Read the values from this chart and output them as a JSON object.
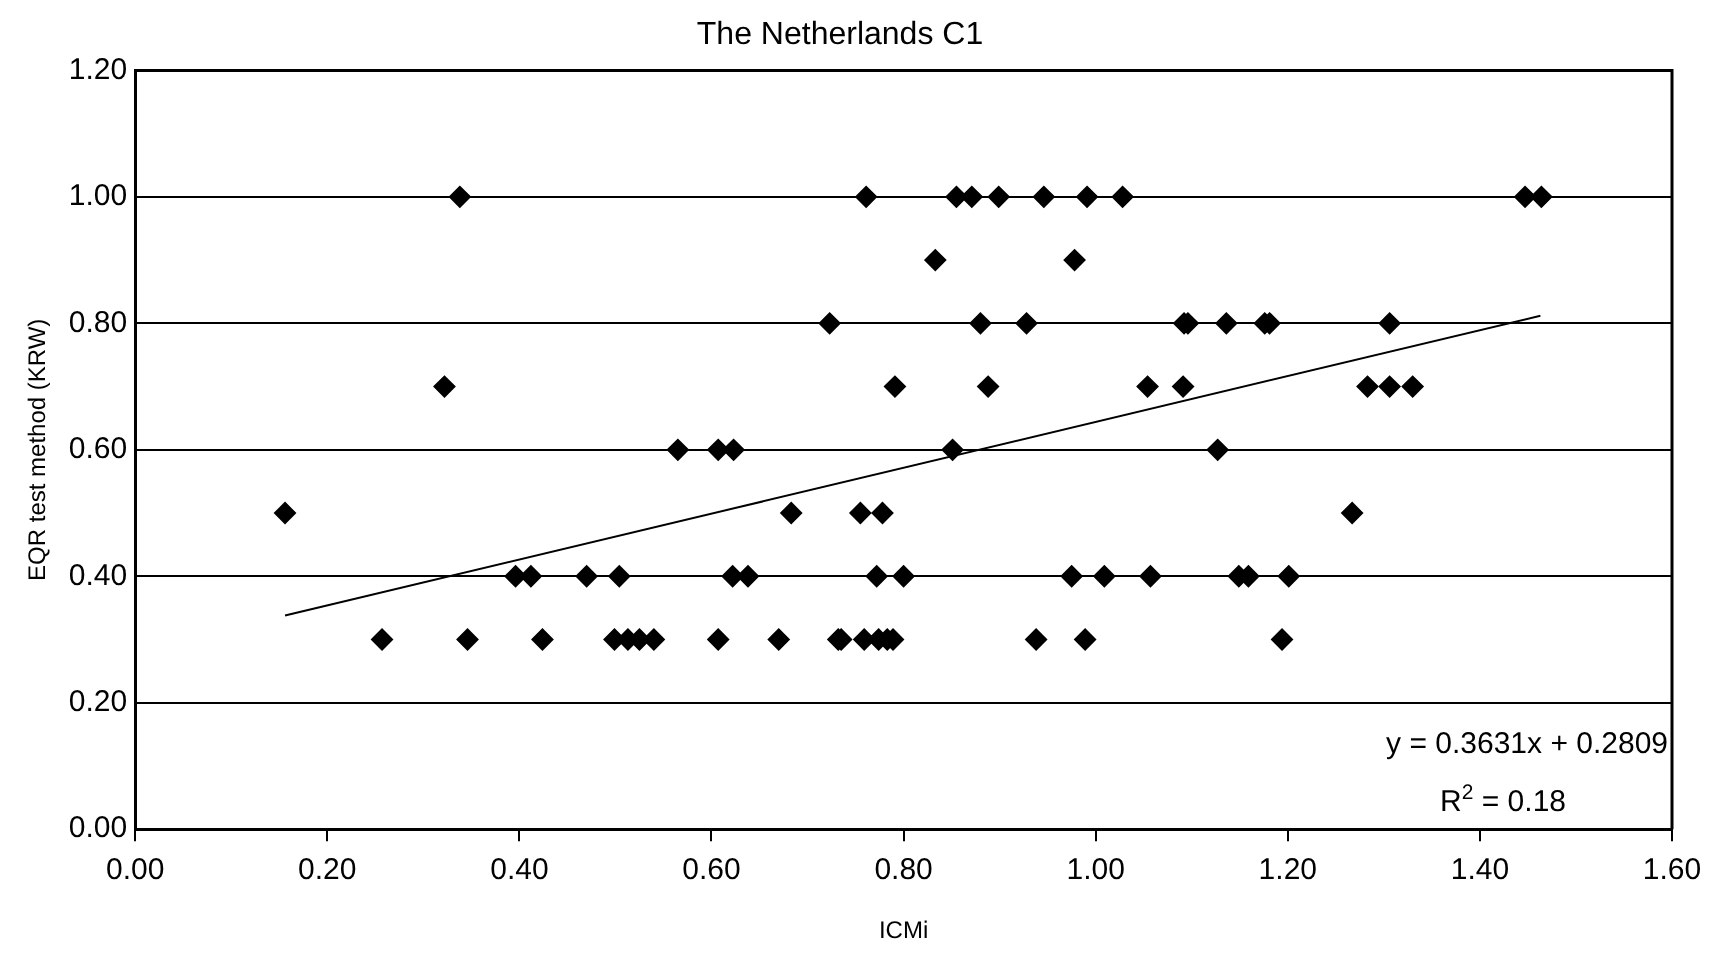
{
  "chart_data": {
    "type": "scatter",
    "title": "The Netherlands C1",
    "xlabel": "ICMi",
    "ylabel": "EQR test method (KRW)",
    "xlim": [
      0,
      1.6
    ],
    "xticks": [
      {
        "value": 0,
        "label": "0.00"
      },
      {
        "value": 0.2,
        "label": "0.20"
      },
      {
        "value": 0.4,
        "label": "0.40"
      },
      {
        "value": 0.6,
        "label": "0.60"
      },
      {
        "value": 0.8,
        "label": "0.80"
      },
      {
        "value": 1,
        "label": "1.00"
      },
      {
        "value": 1.2,
        "label": "1.20"
      },
      {
        "value": 1.4,
        "label": "1.40"
      },
      {
        "value": 1.6,
        "label": "1.60"
      }
    ],
    "ylim": [
      0,
      1.2
    ],
    "yticks": [
      {
        "value": 0,
        "label": "0.00"
      },
      {
        "value": 0.2,
        "label": "0.20"
      },
      {
        "value": 0.4,
        "label": "0.40"
      },
      {
        "value": 0.6,
        "label": "0.60"
      },
      {
        "value": 0.8,
        "label": "0.80"
      },
      {
        "value": 1,
        "label": "1.00"
      },
      {
        "value": 1.2,
        "label": "1.20"
      }
    ],
    "grid": "y",
    "legend": false,
    "marker": "diamond",
    "series": [
      {
        "type": "scatter",
        "color": "#000000",
        "x": [
          0.338,
          0.761,
          0.855,
          0.871,
          0.899,
          0.946,
          0.991,
          1.028,
          1.447,
          1.464,
          0.833,
          0.978,
          0.723,
          0.88,
          0.928,
          1.092,
          1.096,
          1.136,
          1.176,
          1.181,
          1.306,
          0.322,
          0.791,
          0.888,
          1.054,
          1.091,
          1.283,
          1.306,
          1.33,
          0.565,
          0.607,
          0.623,
          0.851,
          1.127,
          0.156,
          0.683,
          0.755,
          0.778,
          1.267,
          0.396,
          0.412,
          0.47,
          0.504,
          0.622,
          0.638,
          0.772,
          0.8,
          0.975,
          1.009,
          1.057,
          1.149,
          1.159,
          1.201,
          0.257,
          0.346,
          0.424,
          0.499,
          0.513,
          0.525,
          0.54,
          0.607,
          0.67,
          0.732,
          0.735,
          0.759,
          0.774,
          0.783,
          0.789,
          0.938,
          0.989,
          1.194
        ],
        "values": [
          1,
          1,
          1,
          1,
          1,
          1,
          1,
          1,
          1,
          1,
          0.9,
          0.9,
          0.8,
          0.8,
          0.8,
          0.8,
          0.8,
          0.8,
          0.8,
          0.8,
          0.8,
          0.7,
          0.7,
          0.7,
          0.7,
          0.7,
          0.7,
          0.7,
          0.7,
          0.6,
          0.6,
          0.6,
          0.6,
          0.6,
          0.5,
          0.5,
          0.5,
          0.5,
          0.5,
          0.4,
          0.4,
          0.4,
          0.4,
          0.4,
          0.4,
          0.4,
          0.4,
          0.4,
          0.4,
          0.4,
          0.4,
          0.4,
          0.4,
          0.3,
          0.3,
          0.3,
          0.3,
          0.3,
          0.3,
          0.3,
          0.3,
          0.3,
          0.3,
          0.3,
          0.3,
          0.3,
          0.3,
          0.3,
          0.3,
          0.3,
          0.3
        ]
      },
      {
        "type": "line",
        "color": "#000000",
        "marker": "none",
        "x": [
          0.156,
          1.463
        ],
        "values": [
          0.338,
          0.812
        ]
      }
    ],
    "annotations": [
      "y = 0.3631x + 0.2809",
      "R$^{2}$ = 0.18"
    ]
  }
}
